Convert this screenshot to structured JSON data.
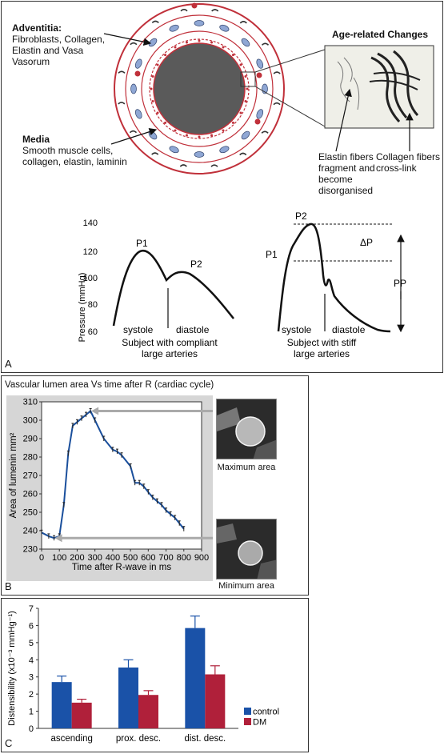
{
  "panelA": {
    "letter": "A",
    "adventitia_title": "Adventitia:",
    "adventitia_text_lines": [
      "Fibroblasts, Collagen,",
      "Elastin and Vasa",
      "Vasorum"
    ],
    "media_title": "Media",
    "media_text_lines": [
      "Smooth muscle cells,",
      "collagen, elastin, laminin"
    ],
    "age_title": "Age-related Changes",
    "elastin_caption_lines": [
      "Elastin fibers",
      "fragment and",
      "become",
      "disorganised"
    ],
    "collagen_caption_lines": [
      "Collagen fibers",
      "cross-link"
    ],
    "waveform": {
      "ylabel": "Pressure (mmHg)",
      "yticks": [
        "140",
        "120",
        "100",
        "80",
        "60"
      ],
      "left": {
        "p1": "P1",
        "p2": "P2",
        "systole": "systole",
        "diastole": "diastole",
        "caption_lines": [
          "Subject with compliant",
          "large arteries"
        ]
      },
      "right": {
        "p1": "P1",
        "p2": "P2",
        "systole": "systole",
        "diastole": "diastole",
        "delta_p": "ΔP",
        "pp": "PP",
        "caption_lines": [
          "Subject with stiff",
          "large arteries"
        ]
      }
    }
  },
  "panelB": {
    "letter": "B",
    "title": "Vascular lumen area Vs time after R (cardiac cycle)",
    "max_caption": "Maximum area",
    "min_caption": "Minimum area"
  },
  "panelC": {
    "letter": "C"
  },
  "colors": {
    "control": "#1a52a8",
    "dm": "#b0203a",
    "line": "#1a4f9c",
    "vessel_red": "#c0303a"
  },
  "chart_data": [
    {
      "type": "line",
      "title": "",
      "xlabel": "Time after R-wave in ms",
      "ylabel": "Area of lumenin mm²",
      "xlim": [
        0,
        900
      ],
      "ylim": [
        230,
        310
      ],
      "xticks": [
        "0",
        "100",
        "200",
        "300",
        "400",
        "500",
        "600",
        "700",
        "800",
        "900"
      ],
      "yticks": [
        "310",
        "300",
        "290",
        "280",
        "270",
        "260",
        "250",
        "240",
        "230"
      ],
      "x": [
        0,
        40,
        70,
        100,
        125,
        150,
        175,
        200,
        225,
        250,
        275,
        300,
        350,
        400,
        425,
        450,
        500,
        525,
        550,
        575,
        600,
        625,
        650,
        675,
        700,
        725,
        750,
        775,
        800
      ],
      "y": [
        239,
        237,
        236,
        237,
        254,
        282,
        297,
        299,
        301,
        303,
        305,
        300,
        290,
        284,
        283,
        281,
        275,
        266,
        266,
        264,
        261,
        258,
        256,
        254,
        251,
        249,
        247,
        244,
        241
      ]
    },
    {
      "type": "bar",
      "title": "",
      "xlabel": "",
      "ylabel": "Distensibility (x10⁻³ mmHg⁻¹)",
      "ylim": [
        0,
        7
      ],
      "yticks": [
        "0",
        "1",
        "2",
        "3",
        "4",
        "5",
        "6",
        "7"
      ],
      "categories": [
        "ascending",
        "prox. desc.",
        "dist. desc."
      ],
      "series": [
        {
          "name": "control",
          "values": [
            2.7,
            3.55,
            5.85
          ],
          "errors": [
            0.35,
            0.45,
            0.7
          ]
        },
        {
          "name": "DM",
          "values": [
            1.5,
            1.95,
            3.15
          ],
          "errors": [
            0.2,
            0.25,
            0.5
          ]
        }
      ],
      "legend": "right"
    }
  ]
}
